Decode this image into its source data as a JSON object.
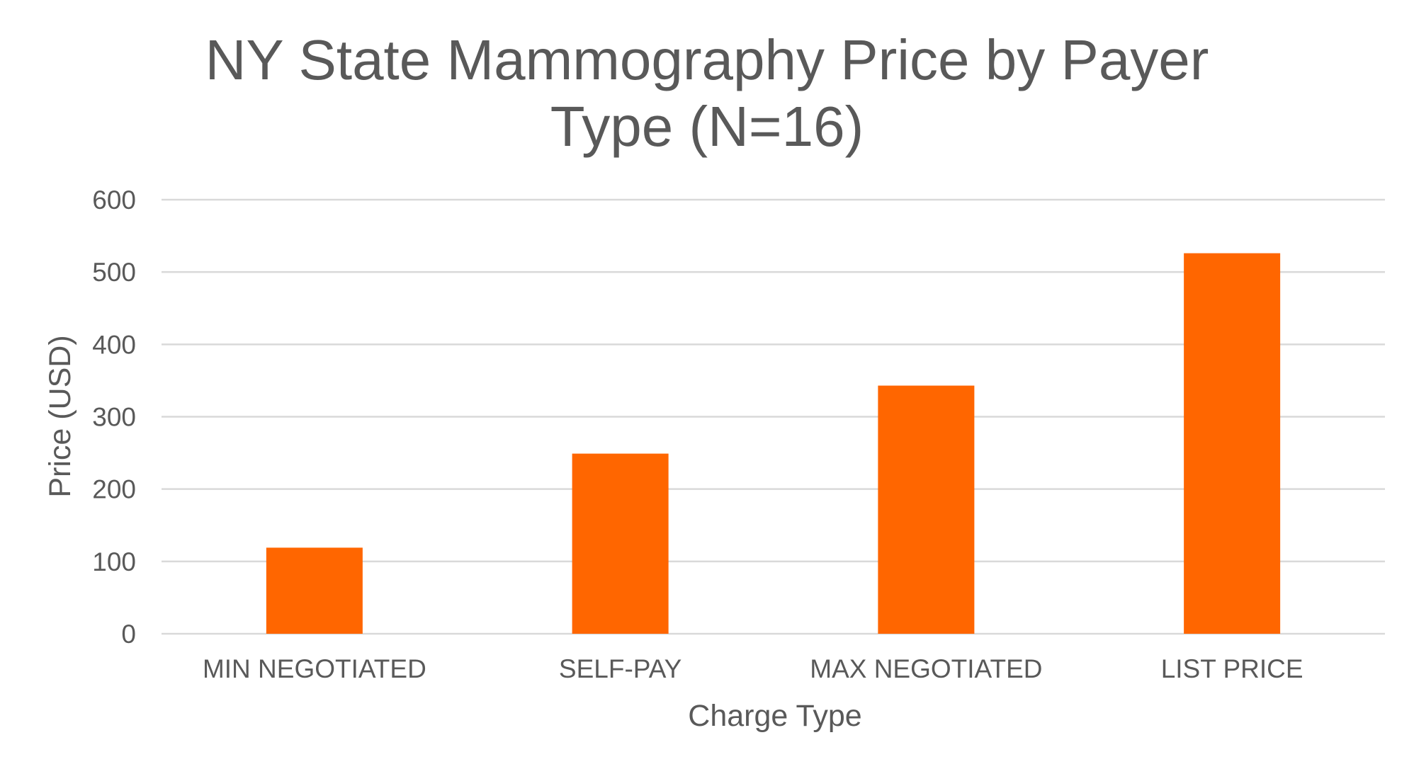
{
  "chart_data": {
    "type": "bar",
    "title_lines": [
      "NY State Mammography Price by Payer",
      "Type (N=16)"
    ],
    "categories": [
      "MIN NEGOTIATED",
      "SELF-PAY",
      "MAX NEGOTIATED",
      "LIST PRICE"
    ],
    "values": [
      119,
      249,
      343,
      526
    ],
    "xlabel": "Charge Type",
    "ylabel": "Price (USD)",
    "ylim": [
      0,
      600
    ],
    "yticks": [
      0,
      100,
      200,
      300,
      400,
      500,
      600
    ],
    "bar_color": "#FF6600",
    "grid": true,
    "legend": false
  }
}
